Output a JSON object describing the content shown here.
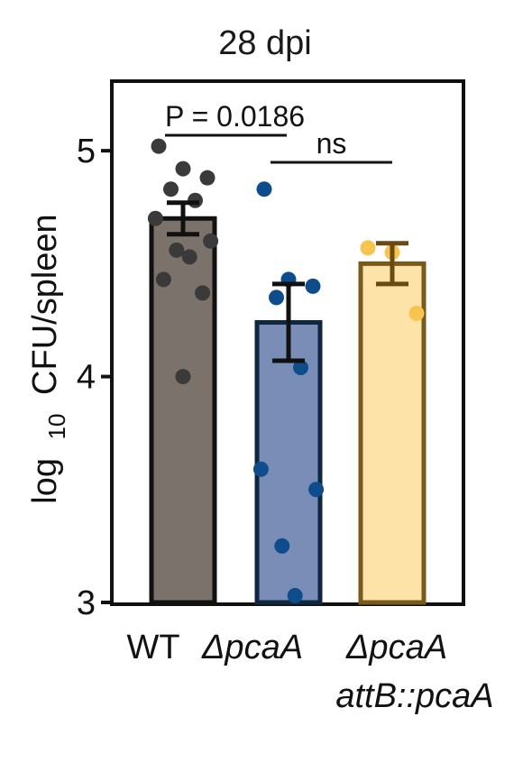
{
  "chart_data": {
    "type": "bar",
    "title": "28 dpi",
    "ylabel_main": "log",
    "ylabel_sub": "10",
    "ylabel_rest": "CFU/spleen",
    "ylim": [
      3,
      5.3
    ],
    "yticks": [
      3,
      4,
      5
    ],
    "ytick_labels": [
      "3",
      "4",
      "5"
    ],
    "grid": false,
    "categories": [
      {
        "line1": "WT",
        "line2": "",
        "italic": false
      },
      {
        "line1": "ΔpcaA",
        "line2": "",
        "italic": true
      },
      {
        "line1": "ΔpcaA",
        "line2": "attB::pcaA",
        "italic": true
      }
    ],
    "series": [
      {
        "values": [
          4.7,
          4.24,
          4.5
        ],
        "error": [
          0.07,
          0.17,
          0.09
        ],
        "fill_colors": [
          "#7a726b",
          "#7a8db6",
          "#fde3a7"
        ],
        "edge_colors": [
          "#111111",
          "#0f2740",
          "#7a5a1c"
        ],
        "point_colors": [
          "#3a3a3a",
          "#0f4c8c",
          "#f7c44f"
        ],
        "points": [
          [
            5.02,
            4.92,
            4.88,
            4.83,
            4.78,
            4.7,
            4.6,
            4.56,
            4.53,
            4.43,
            4.37,
            4.0
          ],
          [
            4.83,
            4.43,
            4.4,
            4.35,
            4.04,
            3.59,
            3.5,
            3.25,
            3.03
          ],
          [
            4.57,
            4.55,
            4.28
          ]
        ]
      }
    ],
    "annotations": [
      {
        "text": "P = 0.0186",
        "from": 0,
        "to": 1
      },
      {
        "text": "ns",
        "from": 1,
        "to": 2
      }
    ]
  }
}
